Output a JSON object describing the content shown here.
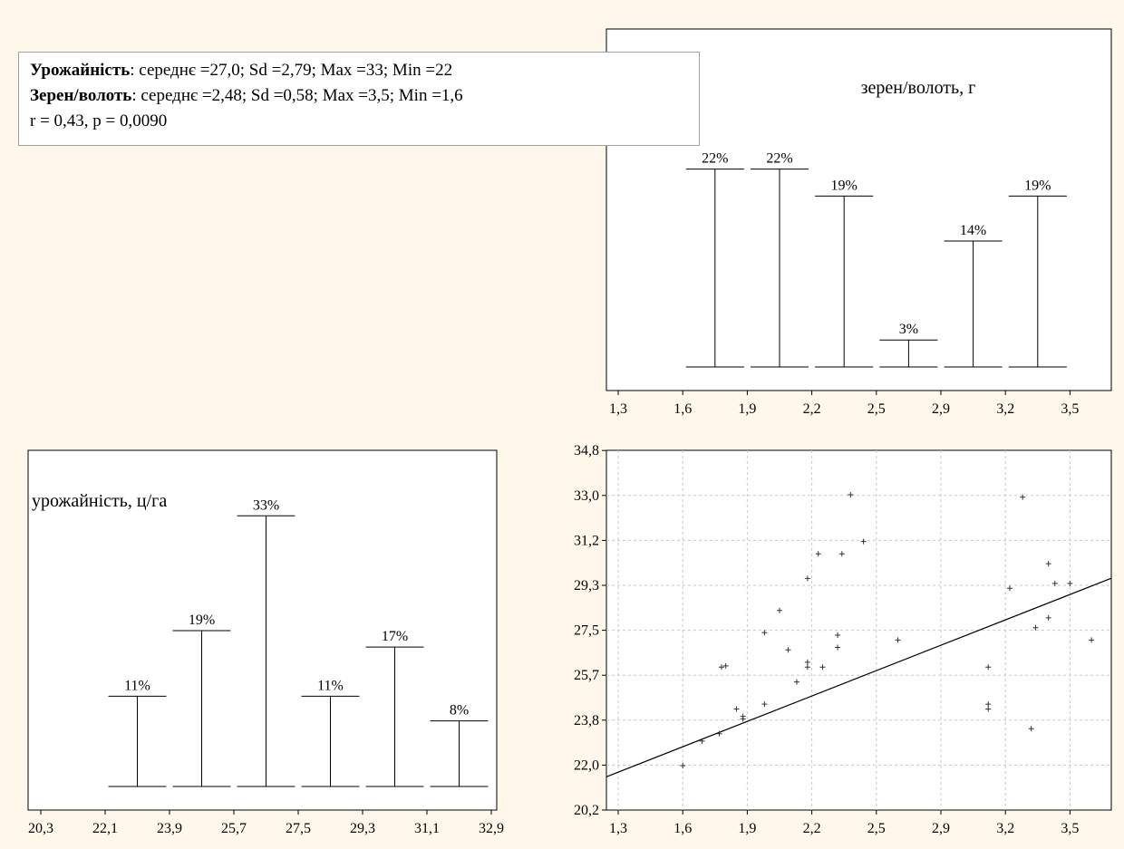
{
  "summary": {
    "line1": {
      "bold": "Урожайність",
      "rest": ": середнє =27,0; Sd =2,79; Max =33; Min =22"
    },
    "line2": {
      "bold": "Зерен/волоть",
      "rest": ": середнє =2,48; Sd =0,58; Max =3,5; Min =1,6"
    },
    "line3": "r = 0,43, p = 0,0090"
  },
  "chart_data": [
    {
      "type": "bar",
      "title": "зерен/волоть, г",
      "x_ticks": [
        "1,3",
        "1,6",
        "1,9",
        "2,2",
        "2,5",
        "2,9",
        "3,2",
        "3,5"
      ],
      "bins": [
        [
          1.6,
          1.9
        ],
        [
          1.9,
          2.2
        ],
        [
          2.2,
          2.5
        ],
        [
          2.5,
          2.9
        ],
        [
          2.9,
          3.2
        ],
        [
          3.2,
          3.5
        ]
      ],
      "values": [
        22,
        22,
        19,
        3,
        14,
        19
      ],
      "value_labels": [
        "22%",
        "22%",
        "19%",
        "3%",
        "14%",
        "19%"
      ],
      "ylim": [
        0,
        25
      ],
      "grid": false
    },
    {
      "type": "bar",
      "title": "урожайність, ц/га",
      "x_ticks": [
        "20,3",
        "22,1",
        "23,9",
        "25,7",
        "27,5",
        "29,3",
        "31,1",
        "32,9"
      ],
      "bins": [
        [
          22.1,
          23.9
        ],
        [
          23.9,
          25.7
        ],
        [
          25.7,
          27.5
        ],
        [
          27.5,
          29.3
        ],
        [
          29.3,
          31.1
        ],
        [
          31.1,
          32.9
        ]
      ],
      "values": [
        11,
        19,
        33,
        11,
        17,
        8
      ],
      "value_labels": [
        "11%",
        "19%",
        "33%",
        "11%",
        "17%",
        "8%"
      ],
      "ylim": [
        0,
        38
      ],
      "grid": false
    },
    {
      "type": "scatter",
      "x_ticks": [
        "1,3",
        "1,6",
        "1,9",
        "2,2",
        "2,5",
        "2,9",
        "3,2",
        "3,5"
      ],
      "y_ticks": [
        "20,2",
        "22,0",
        "23,8",
        "25,7",
        "27,5",
        "29,3",
        "31,2",
        "33,0",
        "34,8"
      ],
      "xlim": [
        1.3,
        3.8
      ],
      "ylim": [
        20.2,
        34.8
      ],
      "grid": true,
      "points": [
        [
          1.6,
          22.0
        ],
        [
          1.69,
          23.0
        ],
        [
          1.77,
          23.3
        ],
        [
          1.78,
          26.0
        ],
        [
          1.8,
          26.05
        ],
        [
          1.85,
          24.3
        ],
        [
          1.88,
          24.0
        ],
        [
          1.88,
          23.9
        ],
        [
          1.98,
          24.5
        ],
        [
          1.98,
          27.4
        ],
        [
          2.05,
          28.3
        ],
        [
          2.09,
          26.7
        ],
        [
          2.13,
          25.4
        ],
        [
          2.18,
          26.2
        ],
        [
          2.18,
          26.0
        ],
        [
          2.18,
          29.6
        ],
        [
          2.23,
          30.6
        ],
        [
          2.25,
          26.0
        ],
        [
          2.32,
          26.8
        ],
        [
          2.32,
          27.3
        ],
        [
          2.34,
          30.6
        ],
        [
          2.38,
          33.0
        ],
        [
          2.44,
          31.1
        ],
        [
          2.6,
          27.1
        ],
        [
          3.02,
          26.0
        ],
        [
          3.02,
          24.5
        ],
        [
          3.02,
          24.3
        ],
        [
          3.12,
          29.2
        ],
        [
          3.18,
          32.9
        ],
        [
          3.22,
          23.5
        ],
        [
          3.24,
          27.6
        ],
        [
          3.3,
          30.2
        ],
        [
          3.3,
          28.0
        ],
        [
          3.33,
          29.4
        ],
        [
          3.4,
          29.4
        ],
        [
          3.5,
          27.1
        ]
      ],
      "regression": {
        "intercept": 17.6,
        "slope": 3.16
      }
    }
  ]
}
